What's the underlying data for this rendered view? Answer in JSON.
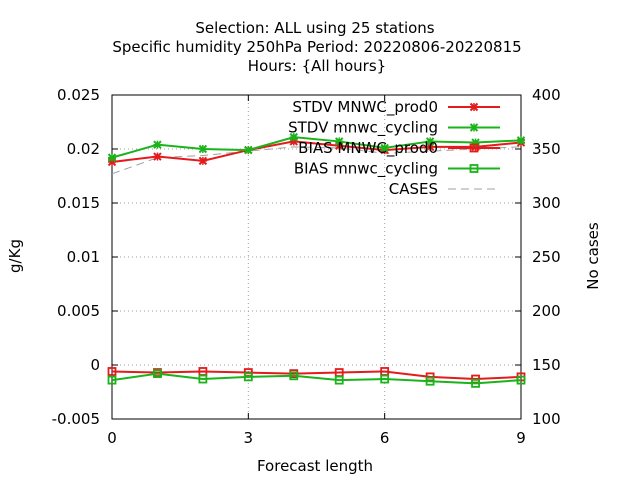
{
  "chart_data": {
    "type": "line",
    "title_lines": [
      "Selection: ALL using    25 stations",
      "Specific humidity 250hPa   Period: 20220806-20220815",
      "Hours: {All hours}"
    ],
    "xlabel": "Forecast length",
    "ylabel": "g/Kg",
    "y2label": "No cases",
    "x": [
      0,
      1,
      2,
      3,
      4,
      5,
      6,
      7,
      8,
      9
    ],
    "xlim": [
      0,
      9
    ],
    "xticks": [
      "0",
      "3",
      "6",
      "9"
    ],
    "ylim": [
      -0.005,
      0.025
    ],
    "yticks": [
      "-0.005",
      "0",
      "0.005",
      "0.01",
      "0.015",
      "0.02",
      "0.025"
    ],
    "y2lim": [
      100,
      400
    ],
    "y2ticks": [
      "100",
      "150",
      "200",
      "250",
      "300",
      "350",
      "400"
    ],
    "grid": true,
    "legend_position": "top-right",
    "series": [
      {
        "name": "STDV MNWC_prod0",
        "axis": "y",
        "color": "#e41a1c",
        "marker": "x",
        "values": [
          0.0188,
          0.0193,
          0.0189,
          0.0199,
          0.0207,
          0.0203,
          0.0199,
          0.0202,
          0.0202,
          0.0206
        ]
      },
      {
        "name": "STDV mnwc_cycling",
        "axis": "y",
        "color": "#1ab41a",
        "marker": "x",
        "values": [
          0.0192,
          0.0204,
          0.02,
          0.0199,
          0.0211,
          0.0207,
          0.0201,
          0.0207,
          0.0206,
          0.0208
        ]
      },
      {
        "name": "BIAS MNWC_prod0",
        "axis": "y",
        "color": "#e41a1c",
        "marker": "square",
        "values": [
          -0.0006,
          -0.0007,
          -0.0006,
          -0.0007,
          -0.0008,
          -0.0007,
          -0.0006,
          -0.0011,
          -0.0013,
          -0.0011
        ]
      },
      {
        "name": "BIAS mnwc_cycling",
        "axis": "y",
        "color": "#1ab41a",
        "marker": "square",
        "values": [
          -0.0014,
          -0.0008,
          -0.0013,
          -0.0011,
          -0.001,
          -0.0014,
          -0.0013,
          -0.0015,
          -0.0017,
          -0.0014
        ]
      },
      {
        "name": "CASES",
        "axis": "y2",
        "color": "#a0a0a0",
        "marker": "none",
        "dash": true,
        "values": [
          327,
          342,
          344,
          348,
          352,
          351,
          346,
          348,
          350,
          352
        ]
      }
    ]
  }
}
